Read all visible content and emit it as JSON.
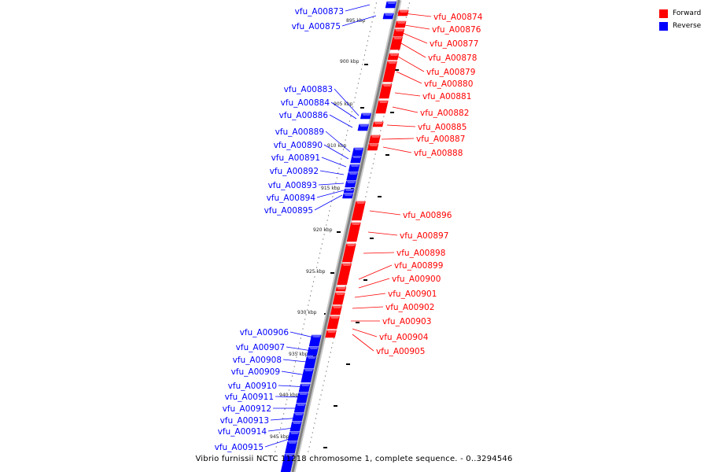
{
  "colors": {
    "forward": "#ff0000",
    "reverse": "#0000ff",
    "backbone": "#808080",
    "ticks": "#000000"
  },
  "legend": [
    {
      "label": "Forward",
      "color": "#ff0000"
    },
    {
      "label": "Reverse",
      "color": "#0000ff"
    }
  ],
  "caption": "Vibrio furnissii NCTC 11218 chromosome 1, complete sequence. - 0..3294546",
  "scale_labels": [
    "895 kbp",
    "900 kbp",
    "905 kbp",
    "910 kbp",
    "915 kbp",
    "920 kbp",
    "925 kbp",
    "930 kbp",
    "935 kbp",
    "940 kbp",
    "945 kbp"
  ],
  "genes_reverse": [
    "vfu_A00873",
    "vfu_A00875",
    "vfu_A00883",
    "vfu_A00884",
    "vfu_A00886",
    "vfu_A00889",
    "vfu_A00890",
    "vfu_A00891",
    "vfu_A00892",
    "vfu_A00893",
    "vfu_A00894",
    "vfu_A00895",
    "vfu_A00906",
    "vfu_A00907",
    "vfu_A00908",
    "vfu_A00909",
    "vfu_A00910",
    "vfu_A00911",
    "vfu_A00912",
    "vfu_A00913",
    "vfu_A00914",
    "vfu_A00915"
  ],
  "genes_forward": [
    "vfu_A00874",
    "vfu_A00876",
    "vfu_A00877",
    "vfu_A00878",
    "vfu_A00879",
    "vfu_A00880",
    "vfu_A00881",
    "vfu_A00882",
    "vfu_A00885",
    "vfu_A00887",
    "vfu_A00888",
    "vfu_A00896",
    "vfu_A00897",
    "vfu_A00898",
    "vfu_A00899",
    "vfu_A00900",
    "vfu_A00901",
    "vfu_A00902",
    "vfu_A00903",
    "vfu_A00904",
    "vfu_A00905"
  ]
}
